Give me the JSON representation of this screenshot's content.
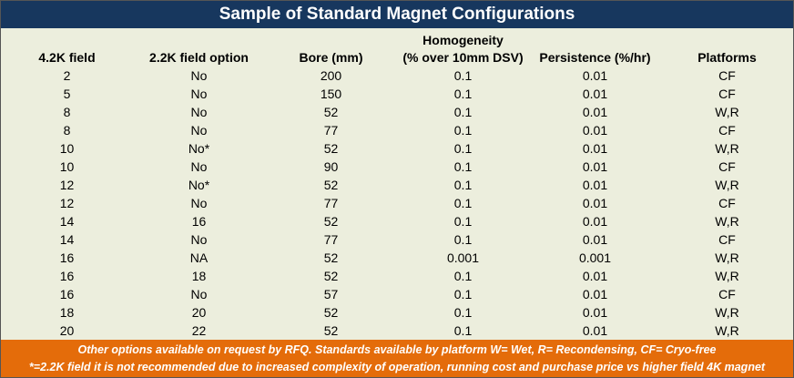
{
  "title": "Sample of Standard Magnet Configurations",
  "table": {
    "header": [
      "4.2K field",
      "2.2K field option",
      "Bore (mm)",
      [
        "Homogeneity",
        "(% over 10mm DSV)"
      ],
      "Persistence (%/hr)",
      "Platforms"
    ],
    "rows": [
      [
        "2",
        "No",
        "200",
        "0.1",
        "0.01",
        "CF"
      ],
      [
        "5",
        "No",
        "150",
        "0.1",
        "0.01",
        "CF"
      ],
      [
        "8",
        "No",
        "52",
        "0.1",
        "0.01",
        "W,R"
      ],
      [
        "8",
        "No",
        "77",
        "0.1",
        "0.01",
        "CF"
      ],
      [
        "10",
        "No*",
        "52",
        "0.1",
        "0.01",
        "W,R"
      ],
      [
        "10",
        "No",
        "90",
        "0.1",
        "0.01",
        "CF"
      ],
      [
        "12",
        "No*",
        "52",
        "0.1",
        "0.01",
        "W,R"
      ],
      [
        "12",
        "No",
        "77",
        "0.1",
        "0.01",
        "CF"
      ],
      [
        "14",
        "16",
        "52",
        "0.1",
        "0.01",
        "W,R"
      ],
      [
        "14",
        "No",
        "77",
        "0.1",
        "0.01",
        "CF"
      ],
      [
        "16",
        "NA",
        "52",
        "0.001",
        "0.001",
        "W,R"
      ],
      [
        "16",
        "18",
        "52",
        "0.1",
        "0.01",
        "W,R"
      ],
      [
        "16",
        "No",
        "57",
        "0.1",
        "0.01",
        "CF"
      ],
      [
        "18",
        "20",
        "52",
        "0.1",
        "0.01",
        "W,R"
      ],
      [
        "20",
        "22",
        "52",
        "0.1",
        "0.01",
        "W,R"
      ]
    ]
  },
  "footer": [
    "Other options available on request by RFQ. Standards available by platform W= Wet, R= Recondensing, CF= Cryo-free",
    "*=2.2K field it is not recommended due to increased complexity of operation, running cost and purchase price vs higher field 4K magnet"
  ]
}
